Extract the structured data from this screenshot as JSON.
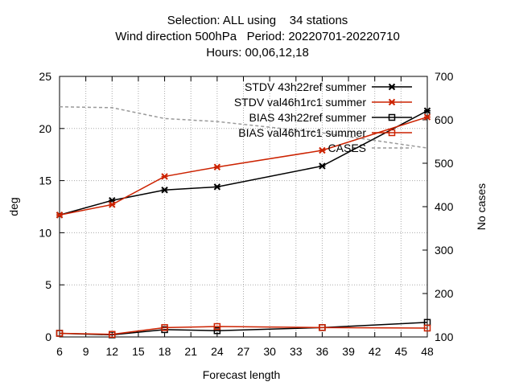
{
  "title": {
    "line1": "Selection: ALL using    34 stations",
    "line2": "Wind direction 500hPa   Period: 20220701-20220710",
    "line3": "Hours: 00,06,12,18"
  },
  "chart_data": {
    "type": "line",
    "xlabel": "Forecast length",
    "ylabel": "deg",
    "y2label": "No cases",
    "x": [
      6,
      12,
      18,
      24,
      36,
      48
    ],
    "xlim": [
      6,
      48
    ],
    "xticks": [
      6,
      9,
      12,
      15,
      18,
      21,
      24,
      27,
      30,
      33,
      36,
      39,
      42,
      45,
      48
    ],
    "ylim": [
      0,
      25
    ],
    "yticks": [
      0,
      5,
      10,
      15,
      20,
      25
    ],
    "y2lim": [
      100,
      700
    ],
    "y2ticks": [
      100,
      200,
      300,
      400,
      500,
      600,
      700
    ],
    "grid": true,
    "legend_position": "top-right",
    "series": [
      {
        "name": "STDV 43h22_ref_summer",
        "legend_label": "STDV 43h22ref summer",
        "color": "#000000",
        "marker": "x",
        "axis": "left",
        "values": [
          11.7,
          13.1,
          14.1,
          14.4,
          16.4,
          21.7
        ]
      },
      {
        "name": "STDV val46h1rc1_summer",
        "legend_label": "STDV val46h1rc1 summer",
        "color": "#cc2200",
        "marker": "x",
        "axis": "left",
        "values": [
          11.7,
          12.7,
          15.4,
          16.3,
          17.9,
          21.1
        ]
      },
      {
        "name": "BIAS 43h22_ref_summer",
        "legend_label": "BIAS 43h22ref summer",
        "color": "#000000",
        "marker": "square",
        "axis": "left",
        "values": [
          0.35,
          0.2,
          0.7,
          0.6,
          0.9,
          1.4
        ]
      },
      {
        "name": "BIAS val46h1rc1_summer",
        "legend_label": "BIAS val46h1rc1 summer",
        "color": "#cc2200",
        "marker": "square",
        "axis": "left",
        "values": [
          0.35,
          0.25,
          0.9,
          1.0,
          0.9,
          0.85
        ]
      },
      {
        "name": "CASES",
        "legend_label": "CASES",
        "color": "#999999",
        "marker": "none",
        "dashed": true,
        "axis": "right",
        "values": [
          630,
          628,
          603,
          596,
          570,
          535
        ]
      }
    ]
  }
}
